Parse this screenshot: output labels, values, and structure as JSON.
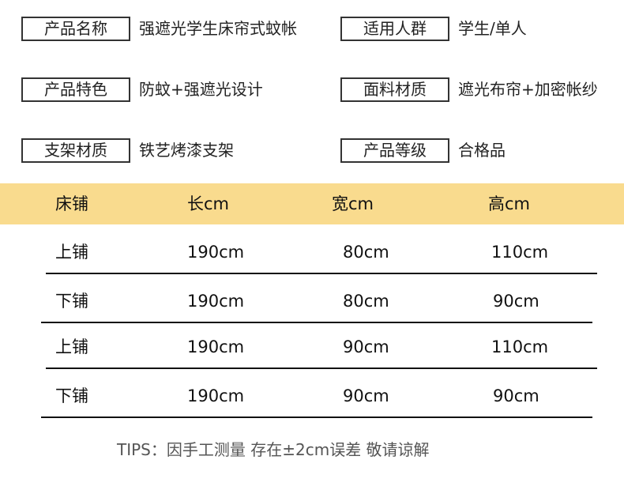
{
  "specs": [
    {
      "label": "产品名称",
      "value": "强遮光学生床帘式蚊帐"
    },
    {
      "label": "适用人群",
      "value": "学生/单人"
    },
    {
      "label": "产品特色",
      "value": "防蚊+强遮光设计"
    },
    {
      "label": "面料材质",
      "value": "遮光布帘+加密帐纱"
    },
    {
      "label": "支架材质",
      "value": "铁艺烤漆支架"
    },
    {
      "label": "产品等级",
      "value": "合格品"
    }
  ],
  "table": {
    "headers": [
      "床铺",
      "长cm",
      "宽cm",
      "高cm"
    ],
    "rows": [
      [
        "上铺",
        "190cm",
        "80cm",
        "110cm"
      ],
      [
        "下铺",
        "190cm",
        "80cm",
        "90cm"
      ],
      [
        "上铺",
        "190cm",
        "90cm",
        "110cm"
      ],
      [
        "下铺",
        "190cm",
        "90cm",
        "90cm"
      ]
    ]
  },
  "tips": "TIPS：因手工测量 存在±2cm误差 敬请谅解",
  "colors": {
    "header_band": "#F9DB8E"
  }
}
